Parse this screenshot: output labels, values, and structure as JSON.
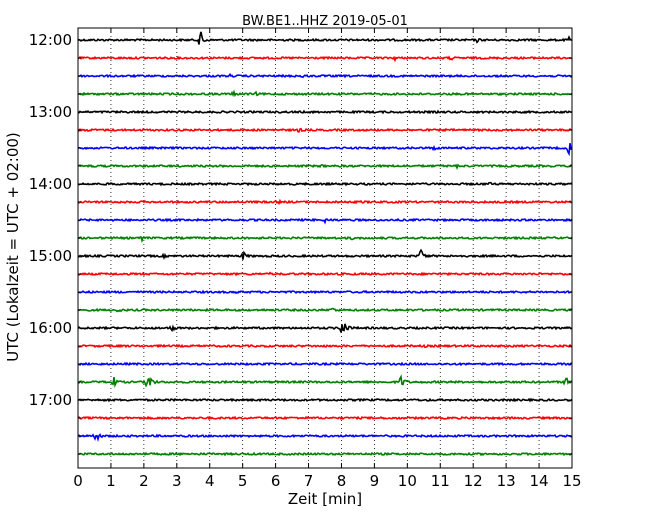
{
  "chart_data": {
    "type": "line",
    "title": "BW.BE1..HHZ 2019-05-01",
    "xlabel": "Zeit  [min]",
    "ylabel": "UTC (Lokalzeit = UTC + 02:00)",
    "xlim": [
      0,
      15
    ],
    "x_ticks": [
      "0",
      "1",
      "2",
      "3",
      "4",
      "5",
      "6",
      "7",
      "8",
      "9",
      "10",
      "11",
      "12",
      "13",
      "14",
      "15"
    ],
    "y_tick_labels": [
      "12:00",
      "13:00",
      "14:00",
      "15:00",
      "16:00",
      "17:00"
    ],
    "grid": "vertical dotted",
    "series_colors": [
      "#000000",
      "#ff0000",
      "#0000ff",
      "#008000"
    ],
    "rows": [
      {
        "start": "12:00",
        "color": "#000000",
        "events": [
          {
            "x": 3.7,
            "amp": 11
          },
          {
            "x": 12.1,
            "amp": 3
          },
          {
            "x": 14.9,
            "amp": 4
          }
        ]
      },
      {
        "start": "12:15",
        "color": "#ff0000",
        "events": [
          {
            "x": 9.6,
            "amp": 3
          },
          {
            "x": 11.3,
            "amp": 3
          }
        ]
      },
      {
        "start": "12:30",
        "color": "#0000ff",
        "events": [
          {
            "x": 4.6,
            "amp": 2
          },
          {
            "x": 6.8,
            "amp": 3
          }
        ]
      },
      {
        "start": "12:45",
        "color": "#008000",
        "events": [
          {
            "x": 4.7,
            "amp": 3
          },
          {
            "x": 5.4,
            "amp": 2
          }
        ]
      },
      {
        "start": "13:00",
        "color": "#000000",
        "events": []
      },
      {
        "start": "13:15",
        "color": "#ff0000",
        "events": [
          {
            "x": 0.3,
            "amp": 2
          },
          {
            "x": 6.7,
            "amp": 3
          }
        ]
      },
      {
        "start": "13:30",
        "color": "#0000ff",
        "events": [
          {
            "x": 10.8,
            "amp": 3
          },
          {
            "x": 14.9,
            "amp": 10
          }
        ]
      },
      {
        "start": "13:45",
        "color": "#008000",
        "events": [
          {
            "x": 0.4,
            "amp": 2
          },
          {
            "x": 7.4,
            "amp": 2
          },
          {
            "x": 11.5,
            "amp": 2
          }
        ]
      },
      {
        "start": "14:00",
        "color": "#000000",
        "events": [
          {
            "x": 1.0,
            "amp": 2
          },
          {
            "x": 12.5,
            "amp": 2
          }
        ]
      },
      {
        "start": "14:15",
        "color": "#ff0000",
        "events": [
          {
            "x": 6.1,
            "amp": 2
          },
          {
            "x": 8.6,
            "amp": 2
          }
        ]
      },
      {
        "start": "14:30",
        "color": "#0000ff",
        "events": [
          {
            "x": 7.5,
            "amp": 3
          }
        ]
      },
      {
        "start": "14:45",
        "color": "#008000",
        "events": [
          {
            "x": 1.9,
            "amp": 4
          },
          {
            "x": 8.3,
            "amp": 2
          }
        ]
      },
      {
        "start": "15:00",
        "color": "#000000",
        "events": [
          {
            "x": 2.6,
            "amp": 2
          },
          {
            "x": 5.0,
            "amp": 5
          },
          {
            "x": 10.4,
            "amp": 8
          }
        ]
      },
      {
        "start": "15:15",
        "color": "#ff0000",
        "events": [
          {
            "x": 5.8,
            "amp": 2
          }
        ]
      },
      {
        "start": "15:30",
        "color": "#0000ff",
        "events": [
          {
            "x": 4.8,
            "amp": 2
          }
        ]
      },
      {
        "start": "15:45",
        "color": "#008000",
        "events": [
          {
            "x": 1.2,
            "amp": 3
          },
          {
            "x": 7.7,
            "amp": 4
          }
        ]
      },
      {
        "start": "16:00",
        "color": "#000000",
        "events": [
          {
            "x": 2.8,
            "amp": 5
          },
          {
            "x": 8.0,
            "amp": 14
          }
        ]
      },
      {
        "start": "16:15",
        "color": "#ff0000",
        "events": [
          {
            "x": 8.5,
            "amp": 2
          },
          {
            "x": 10.5,
            "amp": 2
          }
        ]
      },
      {
        "start": "16:30",
        "color": "#0000ff",
        "events": []
      },
      {
        "start": "16:45",
        "color": "#008000",
        "events": [
          {
            "x": 1.0,
            "amp": 11
          },
          {
            "x": 2.1,
            "amp": 13
          },
          {
            "x": 9.8,
            "amp": 7
          },
          {
            "x": 14.8,
            "amp": 6
          }
        ]
      },
      {
        "start": "17:00",
        "color": "#000000",
        "events": []
      },
      {
        "start": "17:15",
        "color": "#ff0000",
        "events": []
      },
      {
        "start": "17:30",
        "color": "#0000ff",
        "events": [
          {
            "x": 0.5,
            "amp": 8
          }
        ]
      },
      {
        "start": "17:45",
        "color": "#008000",
        "events": []
      }
    ]
  }
}
